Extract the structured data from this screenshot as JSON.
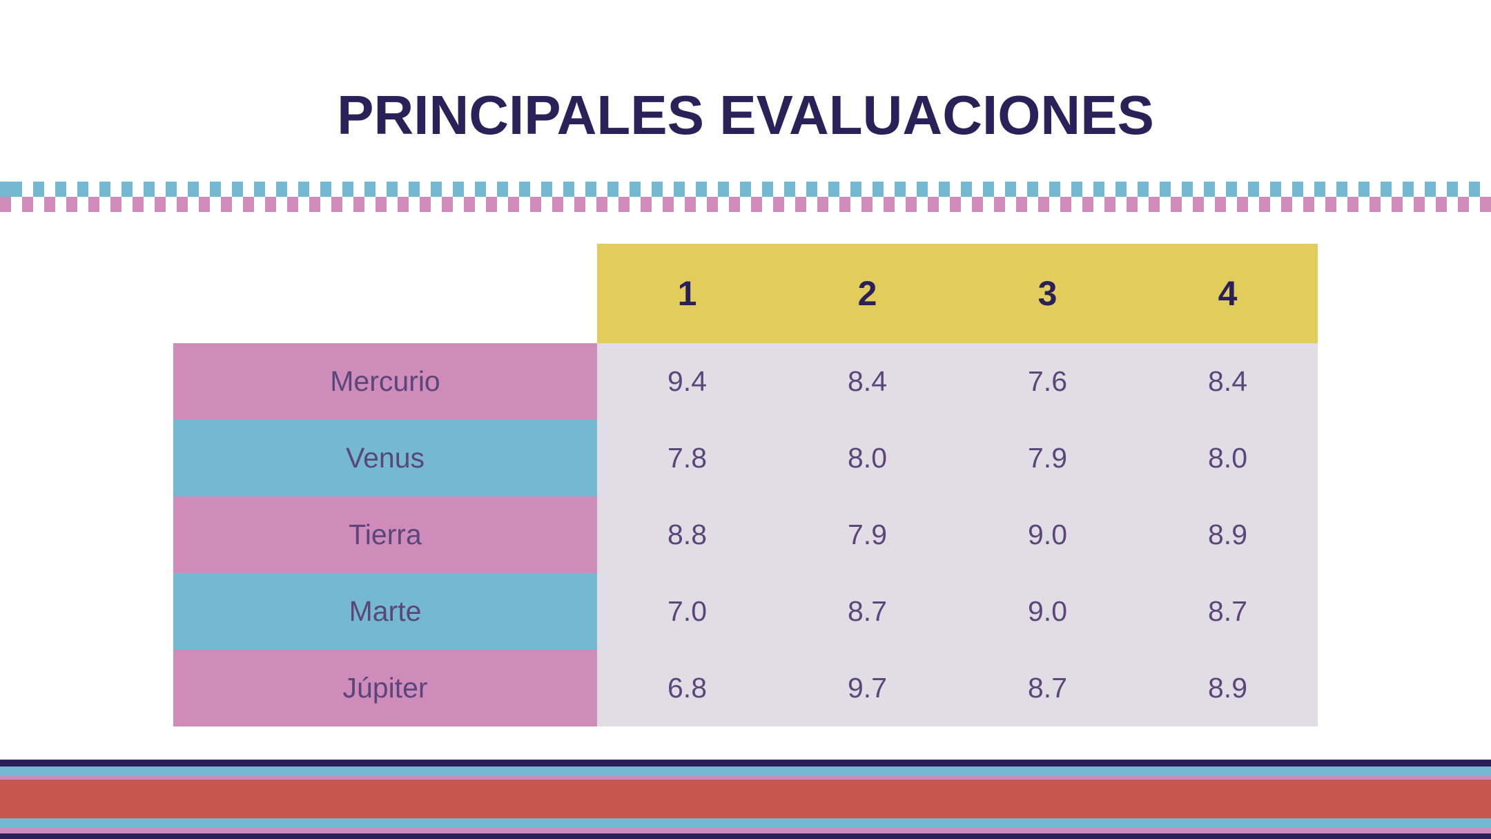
{
  "title": "PRINCIPALES EVALUACIONES",
  "colors": {
    "title": "#2b2159",
    "header_bg": "#e2cd5c",
    "pink": "#cf8bb9",
    "blue": "#75b8d1",
    "cell_bg": "#e0dde5",
    "text": "#5a4679",
    "navy": "#2b2159",
    "red": "#c85650"
  },
  "table": {
    "columns": [
      "1",
      "2",
      "3",
      "4"
    ],
    "rows": [
      {
        "name": "Mercurio",
        "values": [
          "9.4",
          "8.4",
          "7.6",
          "8.4"
        ]
      },
      {
        "name": "Venus",
        "values": [
          "7.8",
          "8.0",
          "7.9",
          "8.0"
        ]
      },
      {
        "name": "Tierra",
        "values": [
          "8.8",
          "7.9",
          "9.0",
          "8.9"
        ]
      },
      {
        "name": "Marte",
        "values": [
          "7.0",
          "8.7",
          "9.0",
          "8.7"
        ]
      },
      {
        "name": "Júpiter",
        "values": [
          "6.8",
          "9.7",
          "8.7",
          "8.9"
        ]
      }
    ]
  }
}
